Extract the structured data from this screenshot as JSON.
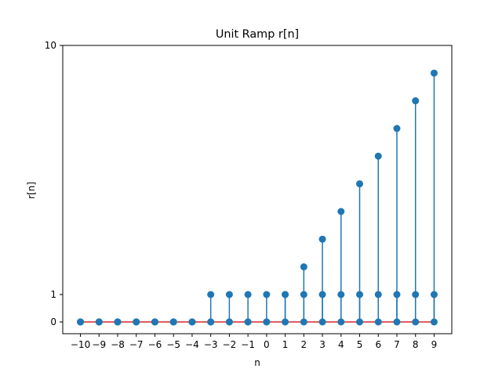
{
  "chart_data": {
    "type": "stem",
    "title": "Unit Ramp r[n]",
    "xlabel": "n",
    "ylabel": "r[n]",
    "x_ticks": [
      "−10",
      "−9",
      "−8",
      "−7",
      "−6",
      "−5",
      "−4",
      "−3",
      "−2",
      "−1",
      "0",
      "1",
      "2",
      "3",
      "4",
      "5",
      "6",
      "7",
      "8",
      "9"
    ],
    "y_ticks": [
      "0",
      "1",
      "10"
    ],
    "xlim": [
      -10.95,
      9.95
    ],
    "ylim": [
      -0.45,
      10
    ],
    "grid": false,
    "series": [
      {
        "x": [
          -10,
          -9,
          -8,
          -7,
          -6,
          -5,
          -4,
          -3,
          -2,
          -1,
          0,
          1,
          2,
          3,
          4,
          5,
          6,
          7,
          8,
          9
        ],
        "values": [
          0,
          0,
          0,
          0,
          0,
          0,
          0,
          0,
          0,
          0,
          0,
          0,
          0,
          0,
          0,
          0,
          0,
          0,
          0,
          0
        ]
      },
      {
        "x": [
          -10,
          -9,
          -8,
          -7,
          -6,
          -5,
          -4,
          -3,
          -2,
          -1,
          0,
          1,
          2,
          3,
          4,
          5,
          6,
          7,
          8,
          9
        ],
        "values": [
          0,
          0,
          0,
          0,
          0,
          0,
          0,
          1,
          1,
          1,
          1,
          1,
          1,
          1,
          1,
          1,
          1,
          1,
          1,
          1
        ]
      },
      {
        "x": [
          -10,
          -9,
          -8,
          -7,
          -6,
          -5,
          -4,
          -3,
          -2,
          -1,
          0,
          1,
          2,
          3,
          4,
          5,
          6,
          7,
          8,
          9
        ],
        "values": [
          0,
          0,
          0,
          0,
          0,
          0,
          0,
          0,
          0,
          0,
          0,
          1,
          2,
          3,
          4,
          5,
          6,
          7,
          8,
          9
        ]
      }
    ],
    "colors": {
      "stem": "#1f77b4",
      "baseline": "#d62728",
      "axes": "#000000"
    }
  }
}
